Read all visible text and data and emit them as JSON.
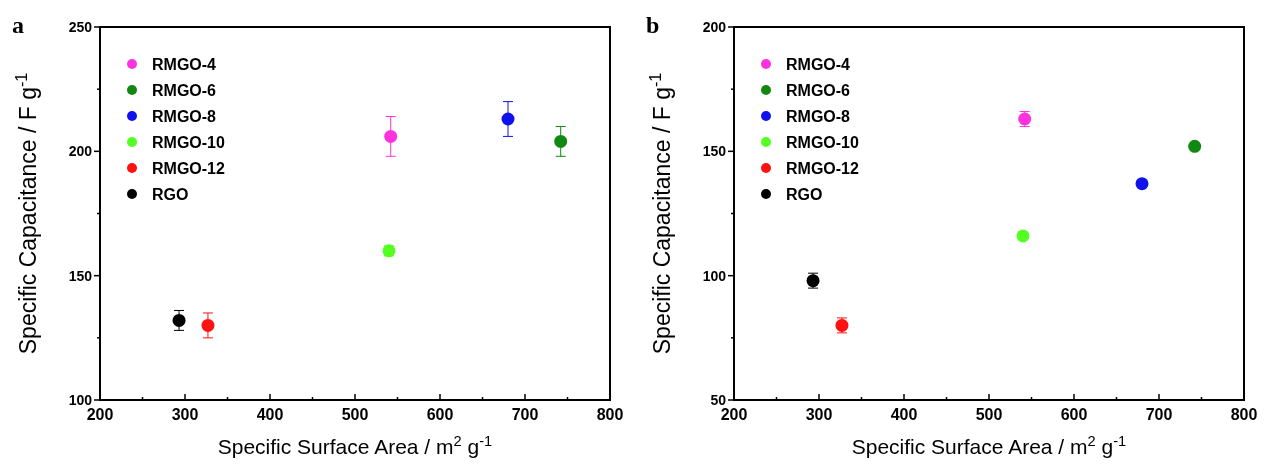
{
  "chart_data": [
    {
      "type": "scatter",
      "title": "a",
      "xlabel": "Specific Surface Area / m$^{2}$ g$^{-1}$",
      "ylabel": "Specific Capacitance / F g$^{-1}$",
      "xlim": [
        200,
        800
      ],
      "ylim": [
        100,
        250
      ],
      "xticks": [
        200,
        {
          "value": 250,
          "label": null
        },
        300,
        {
          "value": 350,
          "label": null
        },
        400,
        {
          "value": 450,
          "label": null
        },
        500,
        {
          "value": 550,
          "label": null
        },
        600,
        {
          "value": 650,
          "label": null
        },
        700,
        {
          "value": 750,
          "label": null
        },
        800
      ],
      "yticks": [
        100,
        {
          "value": 125,
          "label": null
        },
        150,
        {
          "value": 175,
          "label": null
        },
        200,
        {
          "value": 225,
          "label": null
        },
        250
      ],
      "legend": "top left",
      "marker": "circle",
      "grid": false,
      "series": [
        {
          "name": "RMGO-4",
          "color": "#ff33dd",
          "x": [
            542
          ],
          "values": [
            206
          ],
          "errors": [
            8
          ]
        },
        {
          "name": "RMGO-6",
          "color": "#118811",
          "x": [
            742
          ],
          "values": [
            204
          ],
          "errors": [
            6
          ]
        },
        {
          "name": "RMGO-8",
          "color": "#1111ee",
          "x": [
            680
          ],
          "values": [
            213
          ],
          "errors": [
            7
          ]
        },
        {
          "name": "RMGO-10",
          "color": "#55ff22",
          "x": [
            540
          ],
          "values": [
            160
          ],
          "errors": [
            2
          ]
        },
        {
          "name": "RMGO-12",
          "color": "#ff1111",
          "x": [
            327
          ],
          "values": [
            130
          ],
          "errors": [
            5
          ]
        },
        {
          "name": "RGO",
          "color": "#000000",
          "x": [
            293
          ],
          "values": [
            132
          ],
          "errors": [
            4
          ]
        }
      ]
    },
    {
      "type": "scatter",
      "title": "b",
      "xlabel": "Specific Surface Area / m$^{2}$ g$^{-1}$",
      "ylabel": "Specific Capacitance / F g$^{-1}$",
      "xlim": [
        200,
        800
      ],
      "ylim": [
        50,
        200
      ],
      "xticks": [
        200,
        {
          "value": 250,
          "label": null
        },
        300,
        {
          "value": 350,
          "label": null
        },
        400,
        {
          "value": 450,
          "label": null
        },
        500,
        {
          "value": 550,
          "label": null
        },
        600,
        {
          "value": 650,
          "label": null
        },
        700,
        {
          "value": 750,
          "label": null
        },
        800
      ],
      "yticks": [
        50,
        {
          "value": 75,
          "label": null
        },
        100,
        {
          "value": 125,
          "label": null
        },
        150,
        {
          "value": 175,
          "label": null
        },
        200
      ],
      "legend": "top left",
      "marker": "circle",
      "grid": false,
      "series": [
        {
          "name": "RMGO-4",
          "color": "#ff33dd",
          "x": [
            542
          ],
          "values": [
            163
          ],
          "errors": [
            3
          ]
        },
        {
          "name": "RMGO-6",
          "color": "#118811",
          "x": [
            742
          ],
          "values": [
            152
          ],
          "errors": [
            1
          ]
        },
        {
          "name": "RMGO-8",
          "color": "#1111ee",
          "x": [
            680
          ],
          "values": [
            137
          ],
          "errors": [
            1
          ]
        },
        {
          "name": "RMGO-10",
          "color": "#55ff22",
          "x": [
            540
          ],
          "values": [
            116
          ],
          "errors": [
            1
          ]
        },
        {
          "name": "RMGO-12",
          "color": "#ff1111",
          "x": [
            327
          ],
          "values": [
            80
          ],
          "errors": [
            3
          ]
        },
        {
          "name": "RGO",
          "color": "#000000",
          "x": [
            293
          ],
          "values": [
            98
          ],
          "errors": [
            3
          ]
        }
      ]
    }
  ]
}
